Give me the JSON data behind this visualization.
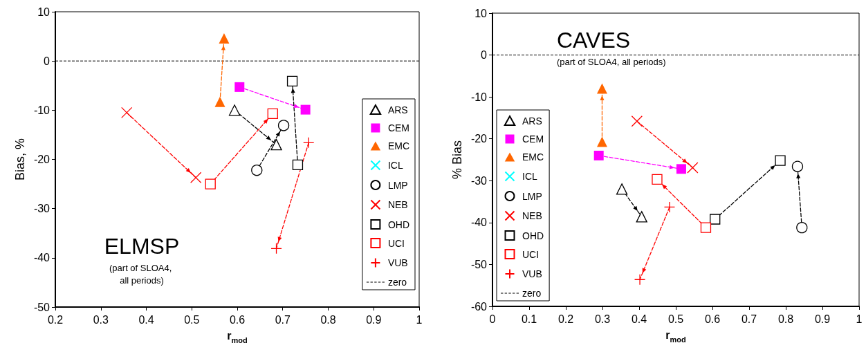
{
  "chart_data": [
    {
      "type": "line",
      "title": "ELMSP",
      "subtitle": "(part of SLOA4, all periods)",
      "xlabel": "r$_{mod}$",
      "ylabel": "Bias, %",
      "xlim": [
        0.2,
        1
      ],
      "xticks": [
        0.2,
        0.3,
        0.4,
        0.5,
        0.6,
        0.7,
        0.8,
        0.9,
        1
      ],
      "ylim": [
        -50,
        10
      ],
      "yticks": [
        -50,
        -40,
        -30,
        -20,
        -10,
        0,
        10
      ],
      "grid": false,
      "legend": "right",
      "line_style": "dashed",
      "ref_lines": [
        {
          "axis": "y",
          "value": 0,
          "label": "zero",
          "color": "#000000",
          "line_style": "dashed"
        }
      ],
      "series": [
        {
          "name": "ARS",
          "color": "#000000",
          "marker": "triangle-open",
          "x": [
            0.594,
            0.686
          ],
          "values": [
            -10.0,
            -17.0
          ]
        },
        {
          "name": "CEM",
          "color": "#ff00ff",
          "marker": "square",
          "x": [
            0.605,
            0.75
          ],
          "values": [
            -5.3,
            -9.9
          ]
        },
        {
          "name": "EMC",
          "color": "#ff6600",
          "marker": "triangle",
          "x": [
            0.562,
            0.571
          ],
          "values": [
            -8.3,
            4.6
          ]
        },
        {
          "name": "ICL",
          "color": "#00ffff",
          "marker": "cross"
        },
        {
          "name": "LMP",
          "color": "#000000",
          "marker": "circle-open",
          "x": [
            0.643,
            0.702
          ],
          "values": [
            -22.2,
            -13.1
          ]
        },
        {
          "name": "NEB",
          "color": "#ff0000",
          "marker": "cross",
          "x": [
            0.357,
            0.509
          ],
          "values": [
            -10.5,
            -23.7
          ]
        },
        {
          "name": "OHD",
          "color": "#000000",
          "marker": "square-open",
          "x": [
            0.733,
            0.721
          ],
          "values": [
            -21.1,
            -4.1
          ]
        },
        {
          "name": "UCI",
          "color": "#ff0000",
          "marker": "square-open",
          "x": [
            0.541,
            0.678
          ],
          "values": [
            -25.0,
            -10.7
          ]
        },
        {
          "name": "VUB",
          "color": "#ff0000",
          "marker": "plus",
          "x": [
            0.757,
            0.686
          ],
          "values": [
            -16.6,
            -38.1
          ]
        }
      ]
    },
    {
      "type": "line",
      "title": "CAVES",
      "subtitle": "(part of SLOA4, all periods)",
      "xlabel": "r$_{mod}$",
      "ylabel": "% Bias",
      "xlim": [
        0,
        1
      ],
      "xticks": [
        0,
        0.1,
        0.2,
        0.3,
        0.4,
        0.5,
        0.6,
        0.7,
        0.8,
        0.9,
        1
      ],
      "ylim": [
        -60,
        10
      ],
      "yticks": [
        -60,
        -50,
        -40,
        -30,
        -20,
        -10,
        0,
        10
      ],
      "grid": false,
      "legend": "bottom left",
      "line_style": "dashed",
      "ref_lines": [
        {
          "axis": "y",
          "value": 0,
          "label": "zero",
          "color": "#000000",
          "line_style": "dashed"
        }
      ],
      "series": [
        {
          "name": "ARS",
          "color": "#000000",
          "marker": "triangle-open",
          "x": [
            0.353,
            0.407
          ],
          "values": [
            -32.0,
            -38.6
          ]
        },
        {
          "name": "CEM",
          "color": "#ff00ff",
          "marker": "square",
          "x": [
            0.29,
            0.515
          ],
          "values": [
            -24.0,
            -27.2
          ]
        },
        {
          "name": "EMC",
          "color": "#ff6600",
          "marker": "triangle",
          "x": [
            0.299,
            0.299
          ],
          "values": [
            -20.7,
            -8.0
          ]
        },
        {
          "name": "ICL",
          "color": "#00ffff",
          "marker": "cross"
        },
        {
          "name": "LMP",
          "color": "#000000",
          "marker": "circle-open",
          "x": [
            0.844,
            0.832
          ],
          "values": [
            -41.2,
            -26.6
          ]
        },
        {
          "name": "NEB",
          "color": "#ff0000",
          "marker": "cross",
          "x": [
            0.394,
            0.546
          ],
          "values": [
            -15.8,
            -26.9
          ]
        },
        {
          "name": "OHD",
          "color": "#000000",
          "marker": "square-open",
          "x": [
            0.607,
            0.785
          ],
          "values": [
            -39.2,
            -25.2
          ]
        },
        {
          "name": "UCI",
          "color": "#ff0000",
          "marker": "square-open",
          "x": [
            0.582,
            0.449
          ],
          "values": [
            -41.2,
            -29.7
          ]
        },
        {
          "name": "VUB",
          "color": "#ff0000",
          "marker": "plus",
          "x": [
            0.483,
            0.402
          ],
          "values": [
            -36.3,
            -53.6
          ]
        }
      ]
    }
  ]
}
